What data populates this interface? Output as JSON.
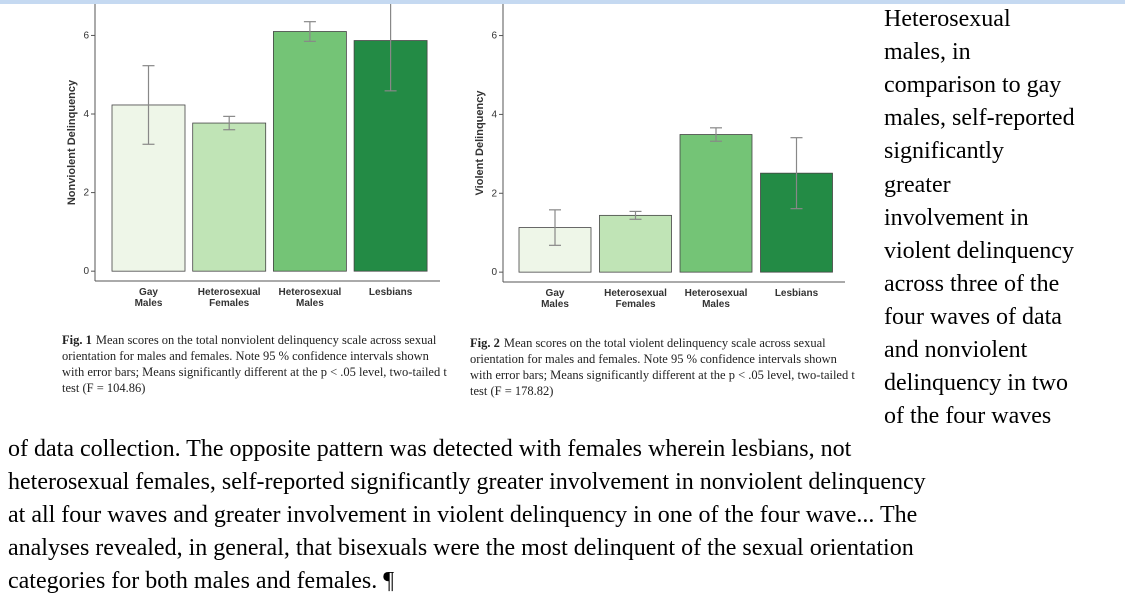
{
  "chart_data": [
    {
      "type": "bar",
      "ylabel": "Nonviolent Delinquency",
      "categories": [
        "Gay Males",
        "Heterosexual Females",
        "Heterosexual Males",
        "Lesbians"
      ],
      "values": [
        4.23,
        3.77,
        6.1,
        5.87
      ],
      "errors": [
        1.0,
        0.17,
        0.25,
        1.28
      ],
      "colors": [
        "#eef6e8",
        "#c0e4b6",
        "#74c476",
        "#238b45"
      ],
      "ylim": [
        -0.25,
        6.8
      ],
      "yticks": [
        0,
        2,
        4,
        6
      ],
      "fig_label": "Fig. 1",
      "caption": "Mean scores on the total nonviolent delinquency scale across sexual orientation for males and females. Note 95 % confidence intervals shown with error bars; Means significantly different at the p < .05 level, two-tailed t test (F = 104.86)"
    },
    {
      "type": "bar",
      "ylabel": "Violent Delinquency",
      "categories": [
        "Gay Males",
        "Heterosexual Females",
        "Heterosexual Males",
        "Lesbians"
      ],
      "values": [
        1.13,
        1.44,
        3.49,
        2.51
      ],
      "errors": [
        0.45,
        0.1,
        0.17,
        0.9
      ],
      "colors": [
        "#eef6e8",
        "#c0e4b6",
        "#74c476",
        "#238b45"
      ],
      "ylim": [
        -0.25,
        6.8
      ],
      "yticks": [
        0,
        2,
        4,
        6
      ],
      "fig_label": "Fig. 2",
      "caption": "Mean scores on the total violent delinquency scale across sexual orientation for males and females. Note 95 % confidence intervals shown with error bars; Means significantly different at the p < .05 level, two-tailed t test (F = 178.82)"
    }
  ],
  "side_text": [
    "Heterosexual",
    "males, in",
    "comparison to gay",
    "males, self-reported",
    "significantly",
    "greater",
    "involvement in",
    "violent delinquency",
    "across three of the",
    "four waves of data",
    "and nonviolent",
    "delinquency in two",
    "of the four waves"
  ],
  "bottom_text": [
    "of data collection. The opposite pattern was detected with females wherein lesbians, not",
    "heterosexual females, self-reported significantly greater involvement in nonviolent delinquency",
    "at all four waves and greater involvement in violent delinquency in one of the four wave... The",
    "analyses revealed, in general, that bisexuals were the most delinquent of the sexual orientation",
    "categories for both males and females. ¶"
  ]
}
